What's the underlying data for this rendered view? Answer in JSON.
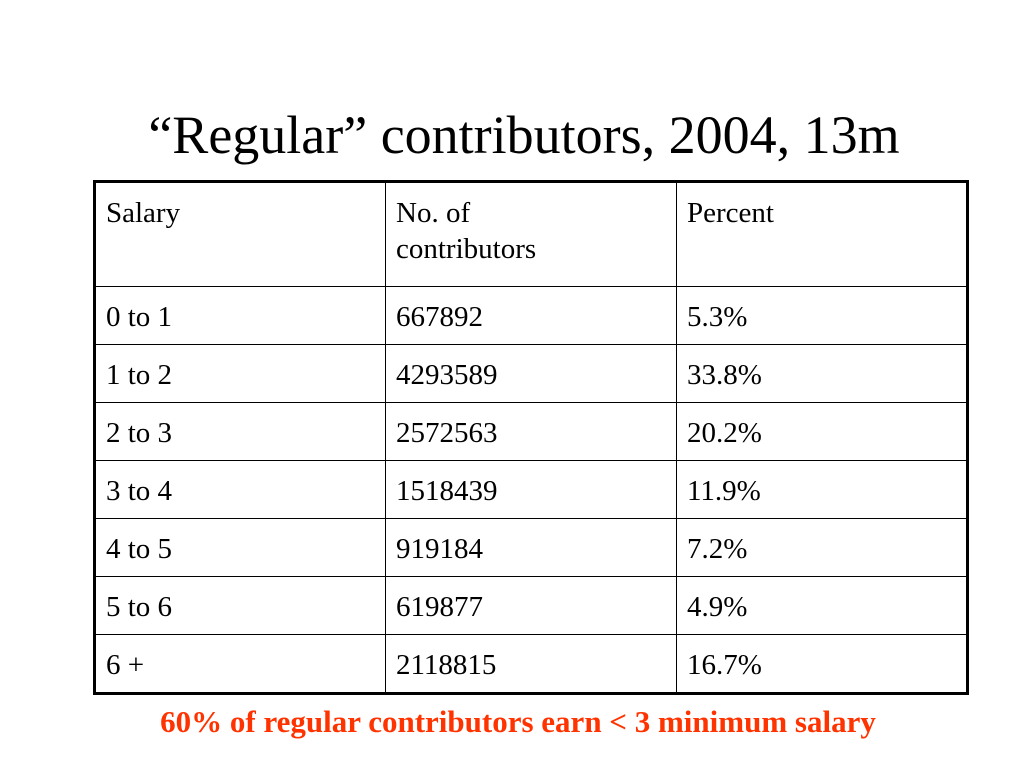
{
  "title": "“Regular” contributors, 2004, 13m",
  "table": {
    "header": [
      "Salary",
      "No. of contributors",
      "Percent"
    ],
    "rows": [
      [
        "0 to 1",
        "667892",
        "5.3%"
      ],
      [
        "1 to 2",
        "4293589",
        "33.8%"
      ],
      [
        "2 to 3",
        "2572563",
        "20.2%"
      ],
      [
        "3 to 4",
        "1518439",
        "11.9%"
      ],
      [
        "4 to 5",
        "919184",
        "7.2%"
      ],
      [
        "5 to 6",
        "619877",
        "4.9%"
      ],
      [
        "6 +",
        "2118815",
        "16.7%"
      ]
    ]
  },
  "note": "60% of regular contributors earn < 3 minimum salary"
}
